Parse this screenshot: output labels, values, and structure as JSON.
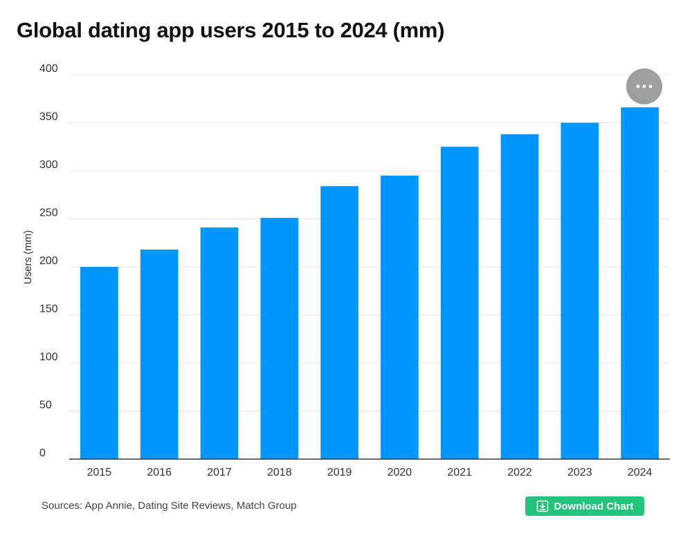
{
  "chart_data": {
    "type": "bar",
    "title": "Global dating app users 2015 to 2024 (mm)",
    "ylabel": "Users (mm)",
    "xlabel": "",
    "categories": [
      "2015",
      "2016",
      "2017",
      "2018",
      "2019",
      "2020",
      "2021",
      "2022",
      "2023",
      "2024"
    ],
    "values": [
      200,
      218,
      241,
      251,
      284,
      295,
      325,
      338,
      350,
      366
    ],
    "ylim": [
      0,
      400
    ],
    "yticks": [
      0,
      50,
      100,
      150,
      200,
      250,
      300,
      350,
      400
    ],
    "grid": true,
    "legend": "none",
    "bar_color": "#0096ff"
  },
  "footer": {
    "source": "Sources: App Annie, Dating Site Reviews, Match Group",
    "download_label": "Download Chart",
    "download_color": "#22c37a"
  },
  "menu": {
    "icon": "more-horizontal-icon"
  }
}
